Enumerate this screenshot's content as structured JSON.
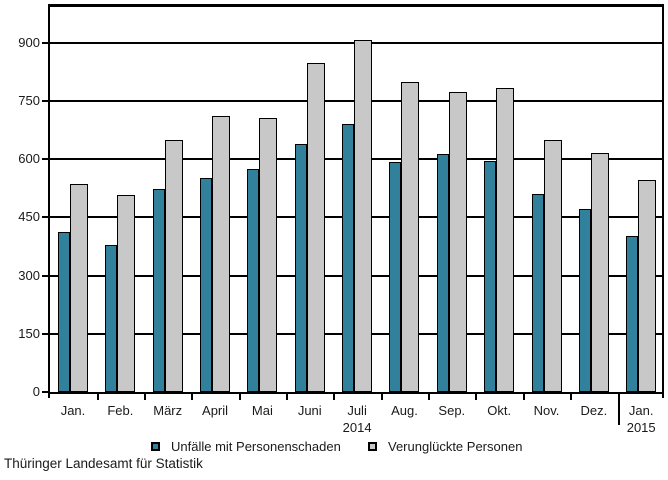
{
  "chart_data": {
    "type": "bar",
    "title": "",
    "categories": [
      "Jan.",
      "Feb.",
      "März",
      "April",
      "Mai",
      "Juni",
      "Juli",
      "Aug.",
      "Sep.",
      "Okt.",
      "Nov.",
      "Dez.",
      "Jan."
    ],
    "year_labels": [
      {
        "index": 6,
        "text": "2014"
      },
      {
        "index": 12,
        "text": "2015"
      }
    ],
    "series": [
      {
        "name": "Unfälle mit Personenschaden",
        "color": "#31809C",
        "values": [
          413,
          380,
          522,
          551,
          574,
          638,
          690,
          593,
          613,
          596,
          510,
          471,
          401
        ]
      },
      {
        "name": "Verunglückte Personen",
        "color": "#C8C8C8",
        "values": [
          536,
          508,
          649,
          711,
          705,
          847,
          907,
          800,
          774,
          784,
          649,
          615,
          546
        ]
      }
    ],
    "ylim": [
      0,
      1000
    ],
    "yticks": [
      0,
      150,
      300,
      450,
      600,
      750,
      900
    ],
    "grid": true,
    "legend_position": "bottom"
  },
  "legend": {
    "items": [
      {
        "label": "Unfälle mit Personenschaden",
        "color": "#31809C"
      },
      {
        "label": "Verunglückte Personen",
        "color": "#C8C8C8"
      }
    ]
  },
  "footer": {
    "source": "Thüringer Landesamt für Statistik"
  },
  "colors": {
    "axis": "#000000",
    "text": "#1a1a1a",
    "background": "#ffffff"
  }
}
